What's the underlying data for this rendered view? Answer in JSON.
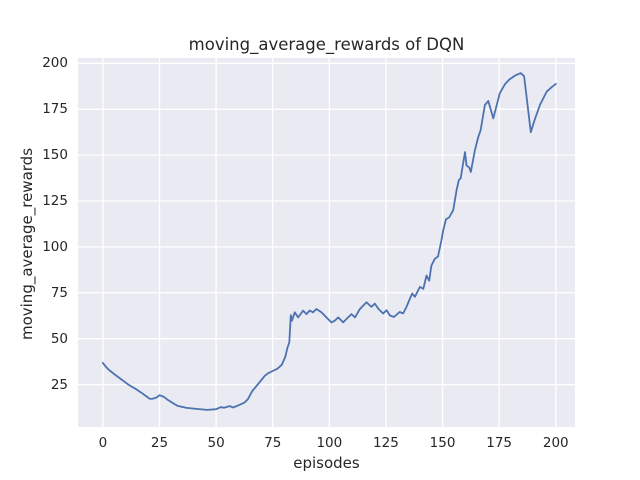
{
  "style": {
    "figure_bg": "#FFFFFF",
    "panel_bg": "#EAEAF2",
    "grid_color": "#FFFFFF",
    "text_color": "#262626",
    "line_color": "#4C72B0"
  },
  "chart_data": {
    "type": "line",
    "title": "moving_average_rewards of DQN",
    "xlabel": "episodes",
    "ylabel": "moving_average_rewards",
    "grid": true,
    "legend": "none",
    "x_ticks": [
      0,
      25,
      50,
      75,
      100,
      125,
      150,
      175,
      200
    ],
    "y_ticks": [
      25,
      50,
      75,
      100,
      125,
      150,
      175,
      200
    ],
    "xlim": [
      -11,
      208.5
    ],
    "ylim": [
      1.9,
      202.9
    ],
    "series": [
      {
        "name": "moving_average_rewards",
        "color": "#4C72B0",
        "points": [
          [
            0,
            36.8
          ],
          [
            1,
            35.2
          ],
          [
            2,
            33.8
          ],
          [
            3,
            32.7
          ],
          [
            5,
            30.7
          ],
          [
            8,
            28.0
          ],
          [
            11,
            25.2
          ],
          [
            12.5,
            24.0
          ],
          [
            14.7,
            22.5
          ],
          [
            17,
            20.6
          ],
          [
            19,
            18.8
          ],
          [
            20.6,
            17.3
          ],
          [
            21.7,
            17.2
          ],
          [
            23.6,
            17.9
          ],
          [
            25,
            19.2
          ],
          [
            27,
            18.3
          ],
          [
            28.5,
            16.8
          ],
          [
            30,
            15.6
          ],
          [
            33,
            13.4
          ],
          [
            37,
            12.3
          ],
          [
            42,
            11.7
          ],
          [
            46,
            11.2
          ],
          [
            50,
            11.6
          ],
          [
            52,
            12.7
          ],
          [
            53.5,
            12.4
          ],
          [
            56,
            13.3
          ],
          [
            57.5,
            12.5
          ],
          [
            60,
            13.8
          ],
          [
            62.5,
            15.2
          ],
          [
            64,
            17.0
          ],
          [
            66,
            21.5
          ],
          [
            68,
            24.5
          ],
          [
            70,
            27.5
          ],
          [
            71.5,
            29.8
          ],
          [
            73,
            31.2
          ],
          [
            75,
            32.4
          ],
          [
            77,
            33.6
          ],
          [
            79,
            35.8
          ],
          [
            80.5,
            40.0
          ],
          [
            81.5,
            45.0
          ],
          [
            82.3,
            48.0
          ],
          [
            83,
            62.8
          ],
          [
            83.5,
            59.8
          ],
          [
            84.7,
            64.4
          ],
          [
            86.2,
            61.6
          ],
          [
            88.4,
            65.3
          ],
          [
            89.9,
            63.4
          ],
          [
            91.3,
            65.3
          ],
          [
            92.8,
            64.4
          ],
          [
            94.3,
            66.2
          ],
          [
            96.5,
            64.4
          ],
          [
            98.7,
            61.6
          ],
          [
            100.9,
            58.9
          ],
          [
            102.4,
            59.8
          ],
          [
            103.9,
            61.6
          ],
          [
            105.4,
            59.8
          ],
          [
            106.1,
            58.9
          ],
          [
            108.3,
            61.6
          ],
          [
            109.8,
            63.4
          ],
          [
            111.3,
            61.6
          ],
          [
            113.5,
            66.2
          ],
          [
            114.9,
            68.0
          ],
          [
            116.4,
            69.8
          ],
          [
            118.6,
            67.3
          ],
          [
            120.1,
            69.1
          ],
          [
            121.6,
            66.4
          ],
          [
            123.8,
            63.7
          ],
          [
            125.3,
            65.5
          ],
          [
            126.7,
            62.7
          ],
          [
            128.5,
            61.8
          ],
          [
            131.1,
            64.6
          ],
          [
            132.6,
            63.7
          ],
          [
            134.1,
            67.3
          ],
          [
            135.6,
            71.8
          ],
          [
            136.6,
            74.6
          ],
          [
            137.8,
            72.8
          ],
          [
            140,
            78.2
          ],
          [
            141.5,
            77.1
          ],
          [
            142.9,
            84.4
          ],
          [
            144.1,
            81.6
          ],
          [
            145.1,
            89.8
          ],
          [
            146.6,
            93.5
          ],
          [
            148,
            94.8
          ],
          [
            149.5,
            103.5
          ],
          [
            150.3,
            109.0
          ],
          [
            151.5,
            115.0
          ],
          [
            153,
            116.2
          ],
          [
            154.7,
            120.0
          ],
          [
            156.2,
            131.0
          ],
          [
            157.2,
            136.3
          ],
          [
            158,
            137.5
          ],
          [
            159.9,
            151.7
          ],
          [
            160.6,
            144.4
          ],
          [
            161.8,
            143.2
          ],
          [
            162.5,
            140.8
          ],
          [
            164.3,
            152.6
          ],
          [
            165.8,
            159.9
          ],
          [
            166.8,
            163.5
          ],
          [
            168.7,
            177.3
          ],
          [
            170.2,
            179.5
          ],
          [
            172.4,
            170.0
          ],
          [
            175.3,
            183.7
          ],
          [
            177.5,
            188.5
          ],
          [
            179.5,
            191.2
          ],
          [
            182,
            193.3
          ],
          [
            184.5,
            194.7
          ],
          [
            186,
            193.0
          ],
          [
            189,
            162.5
          ],
          [
            190.5,
            168.5
          ],
          [
            193,
            177.3
          ],
          [
            196,
            184.6
          ],
          [
            198,
            186.8
          ],
          [
            200,
            188.8
          ]
        ]
      }
    ]
  }
}
